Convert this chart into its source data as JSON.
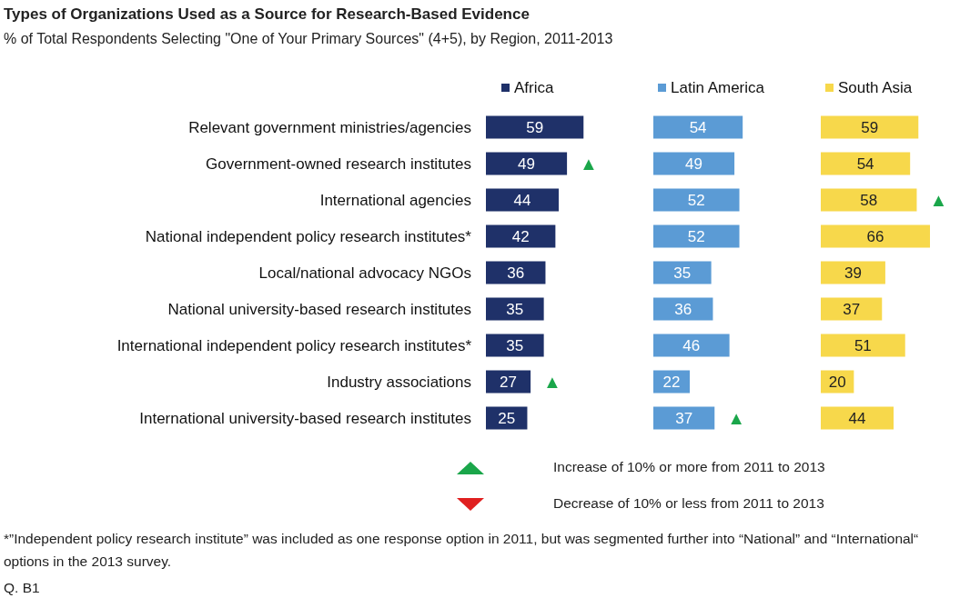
{
  "chart_data": [
    {
      "type": "bar",
      "orientation": "horizontal",
      "title": "Types of Organizations Used as a Source for Research-Based Evidence",
      "subtitle": "% of Total Respondents Selecting \"One of Your Primary Sources\" (4+5), by Region, 2011-2013",
      "categories": [
        "Relevant government ministries/agencies",
        "Government-owned research institutes",
        "International agencies",
        "National independent policy research institutes*",
        "Local/national advocacy NGOs",
        "National university-based research institutes",
        "International independent policy research institutes*",
        "Industry associations",
        "International university-based research institutes"
      ],
      "series": [
        {
          "name": "Africa",
          "color": "#1f3169",
          "values": [
            59,
            49,
            44,
            42,
            36,
            35,
            35,
            27,
            25
          ]
        }
      ],
      "data_labels": true,
      "legend": "top",
      "tick_labels": "y",
      "annotations": [
        {
          "text": "▲",
          "x": 49,
          "y": "Government-owned research institutes"
        },
        {
          "text": "▲",
          "x": 27,
          "y": "Industry associations"
        },
        "Increase of 10% or more from 2011 to 2013",
        "Decrease of 10% or less  from 2011 to 2013",
        "*”Independent policy research institute” was included as one response option in 2011, but was segmented further into “National” and “International“ options in the 2013 survey.",
        "Q. B1"
      ]
    },
    {
      "type": "bar",
      "orientation": "horizontal",
      "tick_labels": false,
      "categories": [
        "Relevant government ministries/agencies",
        "Government-owned research institutes",
        "International agencies",
        "National independent policy research institutes*",
        "Local/national advocacy NGOs",
        "National university-based research institutes",
        "International independent policy research institutes*",
        "Industry associations",
        "International university-based research institutes"
      ],
      "series": [
        {
          "name": "Latin America",
          "color": "#5b9bd5",
          "values": [
            54,
            49,
            52,
            52,
            35,
            36,
            46,
            22,
            37
          ]
        }
      ],
      "data_labels": true,
      "legend": "top",
      "annotations": [
        {
          "text": "▲",
          "x": 37,
          "y": "International university-based research institutes"
        }
      ]
    },
    {
      "type": "bar",
      "orientation": "horizontal",
      "tick_labels": false,
      "categories": [
        "Relevant government ministries/agencies",
        "Government-owned research institutes",
        "International agencies",
        "National independent policy research institutes*",
        "Local/national advocacy NGOs",
        "National university-based research institutes",
        "International independent policy research institutes*",
        "Industry associations",
        "International university-based research institutes"
      ],
      "series": [
        {
          "name": "South Asia",
          "color": "#f7d84b",
          "values": [
            59,
            54,
            58,
            66,
            39,
            37,
            51,
            20,
            44
          ]
        }
      ],
      "data_labels": true,
      "legend": "top",
      "annotations": [
        {
          "text": "▲",
          "x": 58,
          "y": "International agencies"
        }
      ]
    }
  ]
}
